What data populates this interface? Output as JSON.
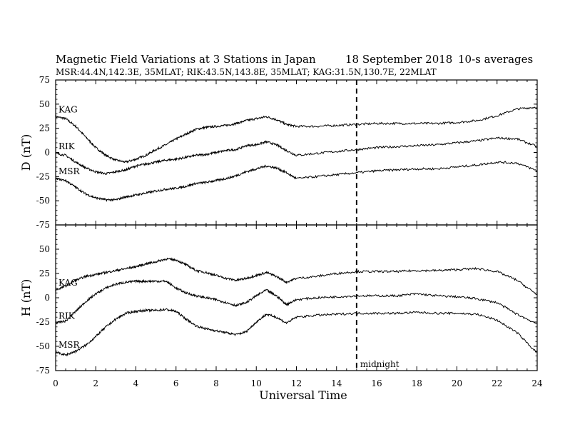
{
  "header": {
    "title": "Magnetic Field Variations at 3 Stations in Japan",
    "date": "18 September 2018",
    "averaging": "10-s averages",
    "stations_line": "MSR:44.4N,142.3E, 35MLAT;  RIK:43.5N,143.8E, 35MLAT;  KAG:31.5N,130.7E, 22MLAT"
  },
  "annotation": {
    "midnight_label": "midnight",
    "midnight_ut": 15
  },
  "chart_data": {
    "type": "line",
    "title": "Magnetic Field Variations at 3 Stations in Japan",
    "xlabel": "Universal Time",
    "xlim": [
      0,
      24
    ],
    "xticks": [
      0,
      2,
      4,
      6,
      8,
      10,
      12,
      14,
      16,
      18,
      20,
      22,
      24
    ],
    "grid": false,
    "panels": [
      {
        "id": "D",
        "ylabel": "D (nT)",
        "ylim": [
          -75,
          75
        ],
        "yticks": [
          75,
          50,
          25,
          0,
          -25,
          -50,
          -75
        ],
        "series": [
          {
            "name": "KAG",
            "x": [
              0,
              0.5,
              1,
              1.5,
              2,
              2.5,
              3,
              3.5,
              4,
              4.5,
              5,
              5.5,
              6,
              6.5,
              7,
              7.5,
              8,
              8.5,
              9,
              9.5,
              10,
              10.5,
              11,
              11.5,
              12,
              13,
              14,
              15,
              16,
              17,
              18,
              19,
              20,
              21,
              22,
              23,
              24
            ],
            "y": [
              37,
              35,
              27,
              16,
              5,
              -3,
              -8,
              -10,
              -7,
              -3,
              3,
              8,
              14,
              19,
              24,
              26,
              27,
              28,
              30,
              33,
              35,
              37,
              34,
              29,
              27,
              27,
              28,
              29,
              30,
              30,
              30,
              30,
              31,
              33,
              38,
              45,
              47
            ]
          },
          {
            "name": "RIK",
            "x": [
              0,
              0.5,
              1,
              1.5,
              2,
              2.5,
              3,
              3.5,
              4,
              4.5,
              5,
              5.5,
              6,
              6.5,
              7,
              7.5,
              8,
              8.5,
              9,
              9.5,
              10,
              10.5,
              11,
              11.5,
              12,
              13,
              14,
              15,
              16,
              17,
              18,
              19,
              20,
              21,
              22,
              23,
              24
            ],
            "y": [
              -1,
              -3,
              -10,
              -16,
              -20,
              -22,
              -20,
              -18,
              -14,
              -12,
              -10,
              -8,
              -7,
              -5,
              -3,
              -2,
              0,
              2,
              3,
              7,
              8,
              11,
              8,
              2,
              -3,
              -1,
              1,
              3,
              5,
              6,
              7,
              8,
              10,
              12,
              15,
              14,
              6
            ]
          },
          {
            "name": "MSR",
            "x": [
              0,
              0.5,
              1,
              1.5,
              2,
              2.5,
              3,
              3.5,
              4,
              4.5,
              5,
              5.5,
              6,
              6.5,
              7,
              7.5,
              8,
              8.5,
              9,
              9.5,
              10,
              10.5,
              11,
              11.5,
              12,
              13,
              14,
              15,
              16,
              17,
              18,
              19,
              20,
              21,
              22,
              23,
              24
            ],
            "y": [
              -27,
              -29,
              -36,
              -43,
              -47,
              -49,
              -49,
              -46,
              -44,
              -42,
              -40,
              -38,
              -37,
              -35,
              -32,
              -31,
              -29,
              -27,
              -24,
              -20,
              -17,
              -14,
              -16,
              -21,
              -27,
              -25,
              -23,
              -21,
              -19,
              -18,
              -17,
              -17,
              -15,
              -13,
              -10,
              -11,
              -19
            ]
          }
        ]
      },
      {
        "id": "H",
        "ylabel": "H (nT)",
        "ylim": [
          -75,
          75
        ],
        "yticks": [
          75,
          50,
          25,
          0,
          -25,
          -50,
          -75
        ],
        "series": [
          {
            "name": "KAG",
            "x": [
              0,
              0.5,
              1,
              1.5,
              2,
              2.5,
              3,
              3.5,
              4,
              4.5,
              5,
              5.5,
              6,
              6.5,
              7,
              7.5,
              8,
              8.5,
              9,
              9.5,
              10,
              10.5,
              11,
              11.5,
              12,
              13,
              14,
              15,
              16,
              17,
              18,
              19,
              20,
              21,
              22,
              23,
              24
            ],
            "y": [
              8,
              12,
              18,
              22,
              24,
              26,
              28,
              30,
              32,
              35,
              37,
              40,
              39,
              34,
              28,
              26,
              23,
              20,
              18,
              20,
              23,
              26,
              22,
              16,
              20,
              22,
              25,
              27,
              27,
              27,
              28,
              28,
              29,
              30,
              27,
              18,
              3
            ]
          },
          {
            "name": "RIK",
            "x": [
              0,
              0.5,
              1,
              1.5,
              2,
              2.5,
              3,
              3.5,
              4,
              4.5,
              5,
              5.5,
              6,
              6.5,
              7,
              7.5,
              8,
              8.5,
              9,
              9.5,
              10,
              10.5,
              11,
              11.5,
              12,
              13,
              14,
              15,
              16,
              17,
              18,
              19,
              20,
              21,
              22,
              23,
              24
            ],
            "y": [
              -26,
              -24,
              -14,
              -4,
              4,
              10,
              14,
              16,
              17,
              17,
              17,
              17,
              10,
              5,
              2,
              0,
              -2,
              -5,
              -8,
              -5,
              2,
              8,
              2,
              -7,
              -2,
              0,
              1,
              2,
              2,
              2,
              4,
              2,
              1,
              -1,
              -5,
              -17,
              -27
            ]
          },
          {
            "name": "MSR",
            "x": [
              0,
              0.5,
              1,
              1.5,
              2,
              2.5,
              3,
              3.5,
              4,
              4.5,
              5,
              5.5,
              6,
              6.5,
              7,
              7.5,
              8,
              8.5,
              9,
              9.5,
              10,
              10.5,
              11,
              11.5,
              12,
              13,
              14,
              15,
              16,
              17,
              18,
              19,
              20,
              21,
              22,
              23,
              24
            ],
            "y": [
              -56,
              -59,
              -55,
              -49,
              -40,
              -30,
              -22,
              -16,
              -14,
              -13,
              -13,
              -12,
              -14,
              -22,
              -29,
              -32,
              -34,
              -36,
              -38,
              -35,
              -25,
              -17,
              -20,
              -26,
              -20,
              -18,
              -17,
              -16,
              -16,
              -16,
              -15,
              -16,
              -16,
              -17,
              -23,
              -36,
              -57
            ]
          }
        ]
      }
    ]
  }
}
